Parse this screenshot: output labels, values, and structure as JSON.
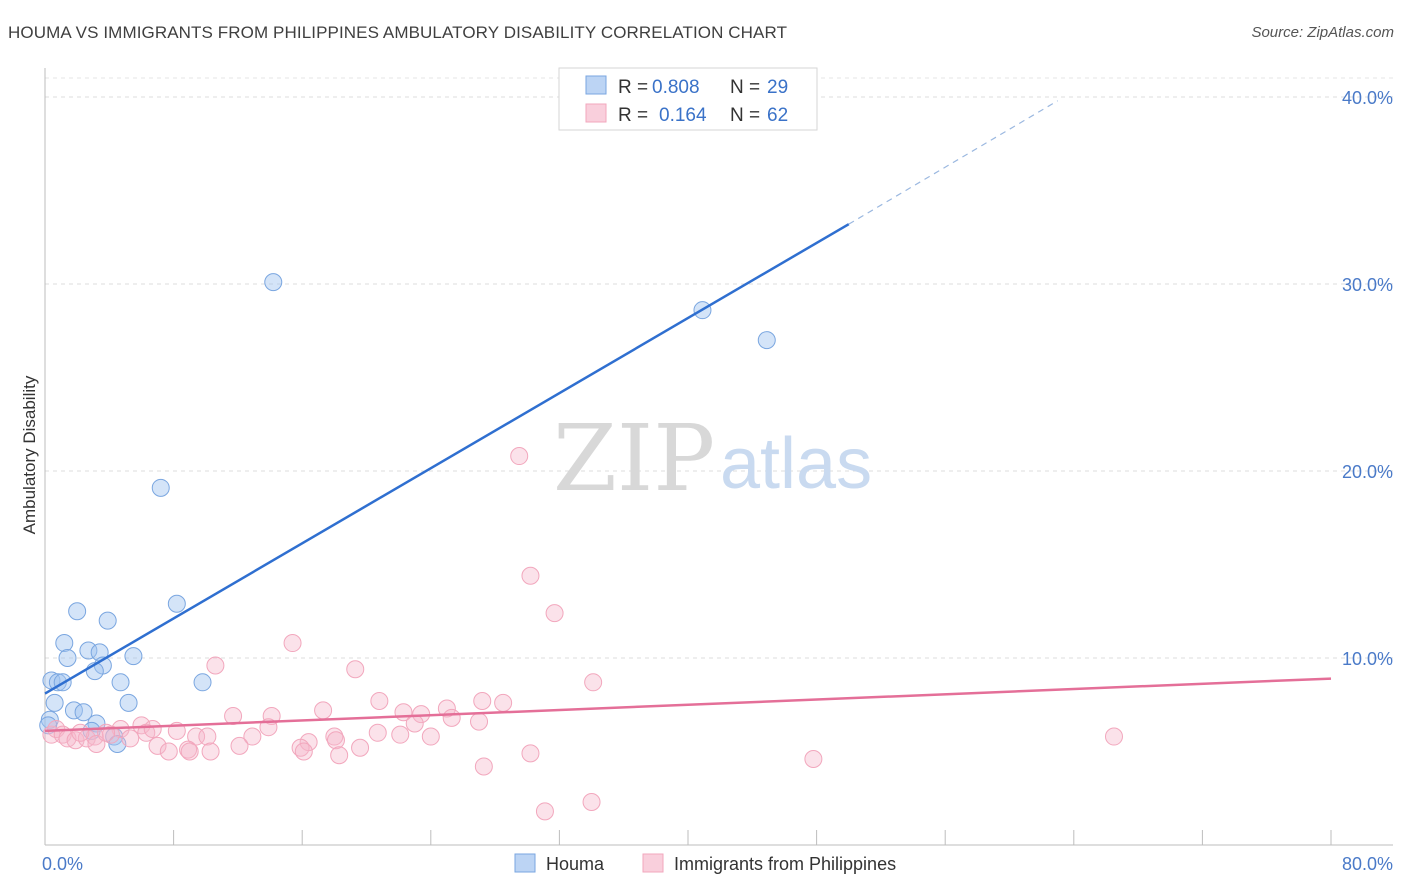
{
  "title": "HOUMA VS IMMIGRANTS FROM PHILIPPINES AMBULATORY DISABILITY CORRELATION CHART",
  "source": "Source: ZipAtlas.com",
  "watermark": {
    "zip": "ZIP",
    "atlas": "atlas"
  },
  "chart_data": {
    "type": "scatter",
    "title": "HOUMA VS IMMIGRANTS FROM PHILIPPINES AMBULATORY DISABILITY CORRELATION CHART",
    "xlabel": "",
    "ylabel": "Ambulatory Disability",
    "xlim": [
      0,
      80
    ],
    "ylim": [
      0,
      40
    ],
    "x_tick_labels": [
      "0.0%",
      "80.0%"
    ],
    "y_ticks": [
      10,
      20,
      30,
      40
    ],
    "y_tick_labels": [
      "10.0%",
      "20.0%",
      "30.0%",
      "40.0%"
    ],
    "grid": true,
    "legend_position": "top-center",
    "series": [
      {
        "name": "Houma",
        "color": "#7aa6e0",
        "line_color": "#2f6fd0",
        "R": "0.808",
        "N": "29",
        "trend": {
          "x0": 0,
          "y0": 8.1,
          "x1": 50,
          "y1": 33.2,
          "dash_to_x": 63,
          "dash_to_y": 39.8
        },
        "points": [
          [
            14.2,
            30.1
          ],
          [
            40.9,
            28.6
          ],
          [
            44.9,
            27.0
          ],
          [
            7.2,
            19.1
          ],
          [
            8.2,
            12.9
          ],
          [
            2.0,
            12.5
          ],
          [
            3.9,
            12.0
          ],
          [
            1.2,
            10.8
          ],
          [
            2.7,
            10.4
          ],
          [
            3.4,
            10.3
          ],
          [
            5.5,
            10.1
          ],
          [
            1.4,
            10.0
          ],
          [
            3.6,
            9.6
          ],
          [
            3.1,
            9.3
          ],
          [
            0.4,
            8.8
          ],
          [
            0.8,
            8.7
          ],
          [
            1.1,
            8.7
          ],
          [
            4.7,
            8.7
          ],
          [
            9.8,
            8.7
          ],
          [
            0.6,
            7.6
          ],
          [
            5.2,
            7.6
          ],
          [
            1.8,
            7.2
          ],
          [
            2.4,
            7.1
          ],
          [
            0.3,
            6.7
          ],
          [
            3.2,
            6.5
          ],
          [
            2.9,
            6.1
          ],
          [
            4.3,
            5.8
          ],
          [
            4.5,
            5.4
          ],
          [
            0.2,
            6.4
          ]
        ]
      },
      {
        "name": "Immigrants from Philippines",
        "color": "#f2a7bd",
        "line_color": "#e46f98",
        "R": "0.164",
        "N": "62",
        "trend": {
          "x0": 0,
          "y0": 6.1,
          "x1": 80,
          "y1": 8.9
        },
        "points": [
          [
            29.5,
            20.8
          ],
          [
            30.2,
            14.4
          ],
          [
            31.7,
            12.4
          ],
          [
            15.4,
            10.8
          ],
          [
            10.6,
            9.6
          ],
          [
            19.3,
            9.4
          ],
          [
            34.1,
            8.7
          ],
          [
            20.8,
            7.7
          ],
          [
            27.2,
            7.7
          ],
          [
            28.5,
            7.6
          ],
          [
            25.0,
            7.3
          ],
          [
            17.3,
            7.2
          ],
          [
            22.3,
            7.1
          ],
          [
            23.4,
            7.0
          ],
          [
            11.7,
            6.9
          ],
          [
            14.1,
            6.9
          ],
          [
            25.3,
            6.8
          ],
          [
            27.0,
            6.6
          ],
          [
            23.0,
            6.5
          ],
          [
            6.0,
            6.4
          ],
          [
            13.9,
            6.3
          ],
          [
            4.7,
            6.2
          ],
          [
            8.2,
            6.1
          ],
          [
            6.3,
            6.0
          ],
          [
            20.7,
            6.0
          ],
          [
            22.1,
            5.9
          ],
          [
            24.0,
            5.8
          ],
          [
            12.9,
            5.8
          ],
          [
            18.0,
            5.8
          ],
          [
            9.4,
            5.8
          ],
          [
            10.1,
            5.8
          ],
          [
            5.3,
            5.7
          ],
          [
            0.4,
            5.9
          ],
          [
            0.7,
            6.2
          ],
          [
            1.1,
            5.9
          ],
          [
            1.4,
            5.7
          ],
          [
            1.9,
            5.6
          ],
          [
            2.6,
            5.7
          ],
          [
            3.1,
            5.8
          ],
          [
            4.1,
            5.9
          ],
          [
            3.2,
            5.4
          ],
          [
            16.4,
            5.5
          ],
          [
            18.1,
            5.6
          ],
          [
            15.9,
            5.2
          ],
          [
            19.6,
            5.2
          ],
          [
            7.0,
            5.3
          ],
          [
            7.7,
            5.0
          ],
          [
            8.9,
            5.1
          ],
          [
            9.0,
            5.0
          ],
          [
            16.1,
            5.0
          ],
          [
            10.3,
            5.0
          ],
          [
            12.1,
            5.3
          ],
          [
            30.2,
            4.9
          ],
          [
            18.3,
            4.8
          ],
          [
            47.8,
            4.6
          ],
          [
            27.3,
            4.2
          ],
          [
            66.5,
            5.8
          ],
          [
            31.1,
            1.8
          ],
          [
            34.0,
            2.3
          ],
          [
            3.8,
            6.0
          ],
          [
            6.7,
            6.2
          ],
          [
            2.2,
            6.0
          ]
        ]
      }
    ]
  }
}
